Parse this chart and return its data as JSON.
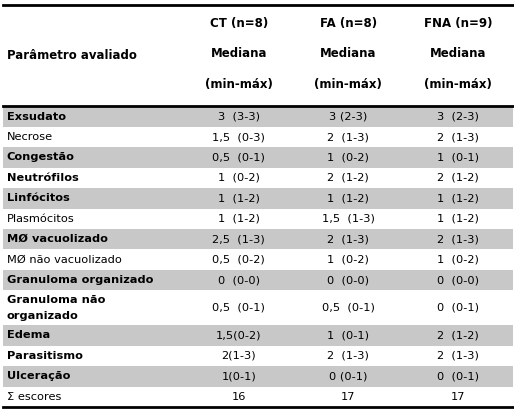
{
  "rows": [
    [
      "Exsudato",
      "3  (3-3)",
      "3 (2-3)",
      "3  (2-3)"
    ],
    [
      "Necrose",
      "1,5  (0-3)",
      "2  (1-3)",
      "2  (1-3)"
    ],
    [
      "Congestão",
      "0,5  (0-1)",
      "1  (0-2)",
      "1  (0-1)"
    ],
    [
      "Neutrófilos",
      "1  (0-2)",
      "2  (1-2)",
      "2  (1-2)"
    ],
    [
      "Linfócitos",
      "1  (1-2)",
      "1  (1-2)",
      "1  (1-2)"
    ],
    [
      "Plasmócitos",
      "1  (1-2)",
      "1,5  (1-3)",
      "1  (1-2)"
    ],
    [
      "MØ vacuolizado",
      "2,5  (1-3)",
      "2  (1-3)",
      "2  (1-3)"
    ],
    [
      "MØ não vacuolizado",
      "0,5  (0-2)",
      "1  (0-2)",
      "1  (0-2)"
    ],
    [
      "Granuloma organizado",
      "0  (0-0)",
      "0  (0-0)",
      "0  (0-0)"
    ],
    [
      "Granuloma não\norganizado",
      "0,5  (0-1)",
      "0,5  (0-1)",
      "0  (0-1)"
    ],
    [
      "Edema",
      "1,5(0-2)",
      "1  (0-1)",
      "2  (1-2)"
    ],
    [
      "Parasitismo",
      "2(1-3)",
      "2  (1-3)",
      "2  (1-3)"
    ],
    [
      "Ulceração",
      "1(0-1)",
      "0 (0-1)",
      "0  (0-1)"
    ],
    [
      "Σ escores",
      "16",
      "17",
      "17"
    ]
  ],
  "row_bold": [
    true,
    false,
    true,
    true,
    true,
    false,
    true,
    false,
    true,
    true,
    true,
    true,
    true,
    false
  ],
  "shaded_rows": [
    0,
    2,
    4,
    6,
    8,
    10,
    12
  ],
  "shade_color": "#c8c8c8",
  "white_color": "#ffffff",
  "bg_color": "#ffffff",
  "header": [
    [
      "CT (n=8)",
      "FA (n=8)",
      "FNA (n=9)"
    ],
    [
      "Mediana",
      "Mediana",
      "Mediana"
    ],
    [
      "(min-máx)",
      "(min-máx)",
      "(min-máx)"
    ]
  ],
  "figsize": [
    5.14,
    4.09
  ],
  "dpi": 100
}
